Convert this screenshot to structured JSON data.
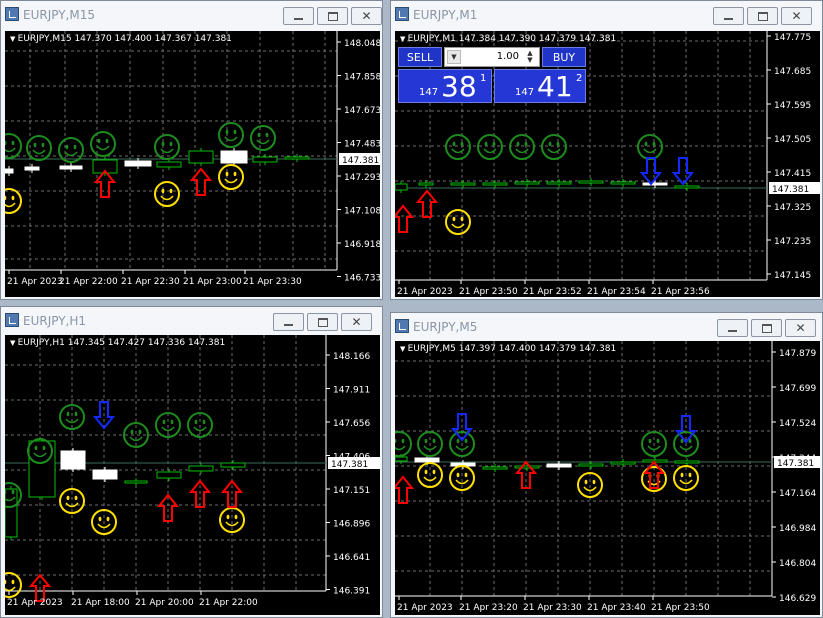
{
  "colors": {
    "grid": "#6e6e6e",
    "axis": "#ffffff",
    "text": "#ffffff",
    "bull": "#00c000",
    "bear": "#ffffff",
    "smile_green": "#1e8c1e",
    "smile_yellow": "#ffe000",
    "arrow_up": "#ff0000",
    "arrow_down": "#1428ff",
    "price_line": "#3a6e5a"
  },
  "windows": [
    {
      "title": "EURJPY,M15",
      "chart_label": "EURJPY,M15  147.370 147.400 147.367 147.381",
      "price_labels": [
        "148.048",
        "147.858",
        "147.673",
        "147.483",
        "147.293",
        "147.108",
        "146.918",
        "146.733"
      ],
      "current_price": "147.381",
      "time_labels": [
        "21 Apr 2023",
        "21 Apr 22:00",
        "21 Apr 22:30",
        "21 Apr 23:00",
        "21 Apr 23:30"
      ]
    },
    {
      "title": "EURJPY,M1",
      "chart_label": "EURJPY,M1  147.384 147.390 147.379 147.381",
      "price_labels": [
        "147.775",
        "147.685",
        "147.595",
        "147.505",
        "147.415",
        "147.325",
        "147.235",
        "147.145"
      ],
      "current_price": "147.381",
      "time_labels": [
        "21 Apr 2023",
        "21 Apr 23:50",
        "21 Apr 23:52",
        "21 Apr 23:54",
        "21 Apr 23:56"
      ],
      "trade_panel": {
        "sell_label": "SELL",
        "buy_label": "BUY",
        "lot_value": "1.00",
        "sell_prefix": "147",
        "sell_big": "38",
        "sell_sup": "1",
        "buy_prefix": "147",
        "buy_big": "41",
        "buy_sup": "2"
      }
    },
    {
      "title": "EURJPY,H1",
      "chart_label": "EURJPY,H1  147.345 147.427 147.336 147.381",
      "price_labels": [
        "148.166",
        "147.911",
        "147.656",
        "147.406",
        "147.151",
        "146.896",
        "146.641",
        "146.391"
      ],
      "current_price": "147.381",
      "time_labels": [
        "21 Apr 2023",
        "21 Apr 18:00",
        "21 Apr 20:00",
        "21 Apr 22:00"
      ]
    },
    {
      "title": "EURJPY,M5",
      "chart_label": "EURJPY,M5  147.397 147.400 147.379 147.381",
      "price_labels": [
        "147.879",
        "147.699",
        "147.524",
        "147.344",
        "147.164",
        "146.984",
        "146.804",
        "146.629"
      ],
      "current_price": "147.381",
      "time_labels": [
        "21 Apr 2023",
        "21 Apr 23:20",
        "21 Apr 23:30",
        "21 Apr 23:40",
        "21 Apr 23:50"
      ]
    }
  ]
}
